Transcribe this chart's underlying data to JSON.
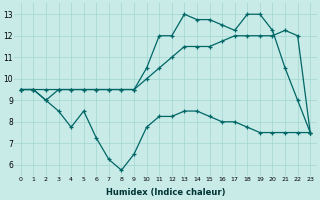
{
  "xlabel": "Humidex (Indice chaleur)",
  "bg_color": "#c8ebe8",
  "grid_color": "#a8d8d4",
  "line_color": "#006666",
  "xlim": [
    -0.5,
    23.5
  ],
  "ylim": [
    5.5,
    13.5
  ],
  "xticks": [
    0,
    1,
    2,
    3,
    4,
    5,
    6,
    7,
    8,
    9,
    10,
    11,
    12,
    13,
    14,
    15,
    16,
    17,
    18,
    19,
    20,
    21,
    22,
    23
  ],
  "yticks": [
    6,
    7,
    8,
    9,
    10,
    11,
    12,
    13
  ],
  "series1_x": [
    0,
    1,
    2,
    3,
    4,
    5,
    6,
    7,
    8,
    9,
    10,
    11,
    12,
    13,
    14,
    15,
    16,
    17,
    18,
    19,
    20,
    21,
    22,
    23
  ],
  "series1_y": [
    9.5,
    9.5,
    9.5,
    9.5,
    9.5,
    9.5,
    9.5,
    9.5,
    9.5,
    9.5,
    10.0,
    10.5,
    11.0,
    11.5,
    11.5,
    11.5,
    11.75,
    12.0,
    12.0,
    12.0,
    12.0,
    12.25,
    12.0,
    7.5
  ],
  "series2_x": [
    0,
    1,
    2,
    3,
    4,
    5,
    6,
    7,
    8,
    9,
    10,
    11,
    12,
    13,
    14,
    15,
    16,
    17,
    18,
    19,
    20,
    21,
    22,
    23
  ],
  "series2_y": [
    9.5,
    9.5,
    9.0,
    9.5,
    9.5,
    9.5,
    9.5,
    9.5,
    9.5,
    9.5,
    10.5,
    12.0,
    12.0,
    13.0,
    12.75,
    12.75,
    12.5,
    12.25,
    13.0,
    13.0,
    12.25,
    10.5,
    9.0,
    7.5
  ],
  "series3_x": [
    0,
    1,
    2,
    3,
    4,
    5,
    6,
    7,
    8,
    9,
    10,
    11,
    12,
    13,
    14,
    15,
    16,
    17,
    18,
    19,
    20,
    21,
    22,
    23
  ],
  "series3_y": [
    9.5,
    9.5,
    9.0,
    8.5,
    7.75,
    8.5,
    7.25,
    6.25,
    5.75,
    6.5,
    7.75,
    8.25,
    8.25,
    8.5,
    8.5,
    8.25,
    8.0,
    8.0,
    7.75,
    7.5,
    7.5,
    7.5,
    7.5,
    7.5
  ]
}
